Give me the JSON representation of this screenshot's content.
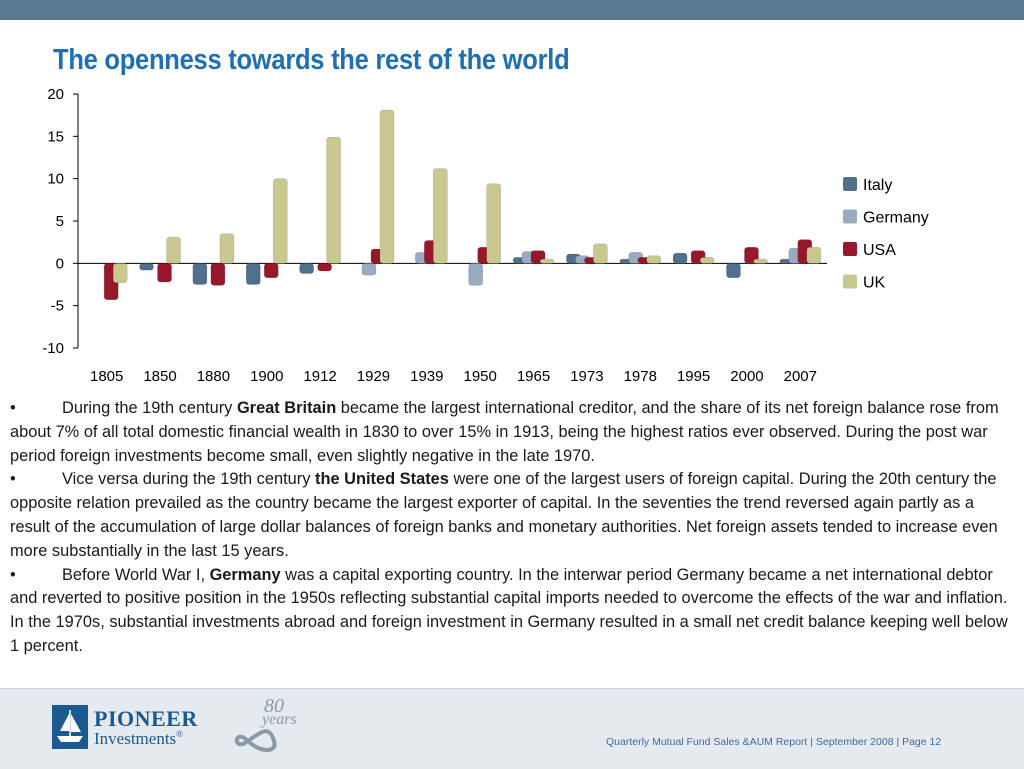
{
  "slide": {
    "title": "The openness towards the rest of the world"
  },
  "chart_data": {
    "type": "bar",
    "categories": [
      "1805",
      "1850",
      "1880",
      "1900",
      "1912",
      "1929",
      "1939",
      "1950",
      "1965",
      "1973",
      "1978",
      "1995",
      "2000",
      "2007"
    ],
    "series": [
      {
        "name": "Italy",
        "color": "#4f6f8c",
        "values": [
          null,
          -0.8,
          -2.5,
          -2.5,
          -1.2,
          null,
          null,
          null,
          0.7,
          1.1,
          0.5,
          1.2,
          -1.7,
          0.5
        ]
      },
      {
        "name": "Germany",
        "color": "#99abc0",
        "values": [
          null,
          null,
          null,
          null,
          null,
          -1.4,
          1.3,
          -2.6,
          1.4,
          0.9,
          1.3,
          null,
          null,
          1.8
        ]
      },
      {
        "name": "USA",
        "color": "#97182b",
        "values": [
          -4.3,
          -2.2,
          -2.6,
          -1.7,
          -0.9,
          1.7,
          2.7,
          1.9,
          1.5,
          0.7,
          0.7,
          1.5,
          1.9,
          2.8
        ]
      },
      {
        "name": "UK",
        "color": "#c9c891",
        "values": [
          -2.3,
          3.1,
          3.5,
          10.0,
          14.9,
          18.1,
          11.2,
          9.4,
          0.5,
          2.3,
          0.9,
          0.7,
          0.5,
          1.9
        ]
      }
    ],
    "yticks": [
      "20",
      "15",
      "10",
      "5",
      "0",
      "-5",
      "-10"
    ],
    "ylim": [
      -10,
      20
    ],
    "legend_position": "right",
    "grid": false,
    "title": "",
    "xlabel": "",
    "ylabel": ""
  },
  "text": {
    "bullets": [
      {
        "marker": "•",
        "before": "During the 19th century ",
        "bold": "Great Britain",
        "after": " became the largest international creditor, and the share of its net foreign balance rose from about 7% of all total domestic financial wealth in 1830 to over 15% in 1913, being the highest ratios ever observed.  During the post war period foreign investments become small, even slightly negative in the late 1970."
      },
      {
        "marker": "•",
        "before": "Vice versa during the 19th century ",
        "bold": "the United States",
        "after": " were one of the largest users of foreign capital. During the 20th century the opposite relation prevailed as the country became the largest exporter of capital. In the seventies the trend reversed again partly as a result of the accumulation of large dollar balances of foreign banks and monetary authorities.  Net foreign assets tended to increase even more substantially in the last 15 years."
      },
      {
        "marker": "•",
        "before": "Before World War I, ",
        "bold": "Germany",
        "after": " was a capital exporting country. In the interwar period Germany became a net international debtor and reverted to positive position in the 1950s reflecting substantial capital imports needed to overcome the effects of the war and inflation. In the 1970s, substantial investments abroad and foreign investment in Germany resulted in a small net credit balance keeping well below 1 percent."
      }
    ]
  },
  "footer": {
    "logo_line1": "PIONEER",
    "logo_line2": "Investments",
    "logo_mark": "®",
    "badge_number": "80",
    "badge_word": "years",
    "page_info": "Quarterly Mutual Fund Sales &AUM Report | September 2008 | Page 12"
  }
}
